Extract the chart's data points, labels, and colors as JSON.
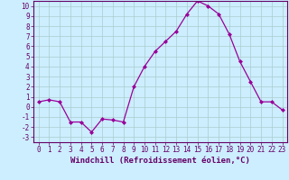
{
  "x": [
    0,
    1,
    2,
    3,
    4,
    5,
    6,
    7,
    8,
    9,
    10,
    11,
    12,
    13,
    14,
    15,
    16,
    17,
    18,
    19,
    20,
    21,
    22,
    23
  ],
  "y": [
    0.5,
    0.7,
    0.5,
    -1.5,
    -1.5,
    -2.5,
    -1.2,
    -1.3,
    -1.5,
    2.0,
    4.0,
    5.5,
    6.5,
    7.5,
    9.2,
    10.5,
    10.0,
    9.2,
    7.2,
    4.5,
    2.5,
    0.5,
    0.5,
    -0.3
  ],
  "line_color": "#990099",
  "marker": "D",
  "marker_size": 2,
  "bg_color": "#cceeff",
  "grid_color": "#aacccc",
  "axis_color": "#660066",
  "tick_color": "#660066",
  "xlabel": "Windchill (Refroidissement éolien,°C)",
  "xlim": [
    -0.5,
    23.5
  ],
  "ylim": [
    -3.5,
    10.5
  ],
  "yticks": [
    -3,
    -2,
    -1,
    0,
    1,
    2,
    3,
    4,
    5,
    6,
    7,
    8,
    9,
    10
  ],
  "xticks": [
    0,
    1,
    2,
    3,
    4,
    5,
    6,
    7,
    8,
    9,
    10,
    11,
    12,
    13,
    14,
    15,
    16,
    17,
    18,
    19,
    20,
    21,
    22,
    23
  ],
  "label_fontsize": 6.5,
  "tick_fontsize": 5.5
}
